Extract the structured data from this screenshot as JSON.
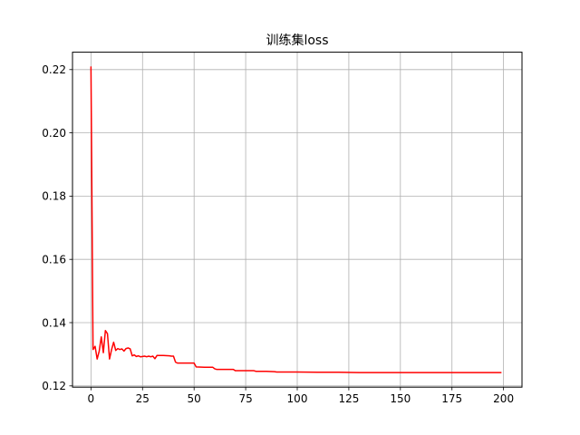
{
  "chart_data": {
    "type": "line",
    "title": "训练集loss",
    "xlabel": "",
    "ylabel": "",
    "xlim": [
      -8.95,
      208.95
    ],
    "ylim": [
      0.1196,
      0.2255
    ],
    "grid": true,
    "xticks": [
      0,
      25,
      50,
      75,
      100,
      125,
      150,
      175,
      200
    ],
    "yticks": [
      0.12,
      0.14,
      0.16,
      0.18,
      0.2,
      0.22
    ],
    "xtick_labels": [
      "0",
      "25",
      "50",
      "75",
      "100",
      "125",
      "150",
      "175",
      "200"
    ],
    "ytick_labels": [
      "0.12",
      "0.14",
      "0.16",
      "0.18",
      "0.20",
      "0.22"
    ],
    "series": [
      {
        "color": "#ff0000",
        "x": [
          0,
          1,
          2,
          3,
          4,
          5,
          6,
          7,
          8,
          9,
          10,
          11,
          12,
          13,
          14,
          15,
          16,
          17,
          18,
          19,
          20,
          21,
          22,
          23,
          24,
          25,
          26,
          27,
          28,
          29,
          30,
          31,
          32,
          35,
          38,
          39,
          40,
          41,
          42,
          45,
          48,
          49,
          50,
          51,
          55,
          59,
          60,
          61,
          65,
          69,
          70,
          75,
          79,
          80,
          85,
          89,
          90,
          100,
          110,
          120,
          130,
          150,
          175,
          199
        ],
        "y": [
          0.221,
          0.1315,
          0.1325,
          0.1285,
          0.131,
          0.1355,
          0.1305,
          0.1375,
          0.1365,
          0.1285,
          0.1315,
          0.1338,
          0.1312,
          0.1318,
          0.1315,
          0.1317,
          0.131,
          0.1318,
          0.132,
          0.1317,
          0.1295,
          0.1298,
          0.1293,
          0.1295,
          0.1292,
          0.1293,
          0.1294,
          0.1292,
          0.1294,
          0.1292,
          0.1294,
          0.1286,
          0.1296,
          0.1296,
          0.1295,
          0.1294,
          0.1294,
          0.1275,
          0.1272,
          0.1272,
          0.1272,
          0.1272,
          0.1272,
          0.126,
          0.1259,
          0.1259,
          0.1254,
          0.1252,
          0.1252,
          0.1252,
          0.1248,
          0.1248,
          0.1248,
          0.1246,
          0.1246,
          0.1245,
          0.1244,
          0.1244,
          0.1243,
          0.1243,
          0.1242,
          0.1242,
          0.1242,
          0.1242
        ]
      }
    ]
  }
}
